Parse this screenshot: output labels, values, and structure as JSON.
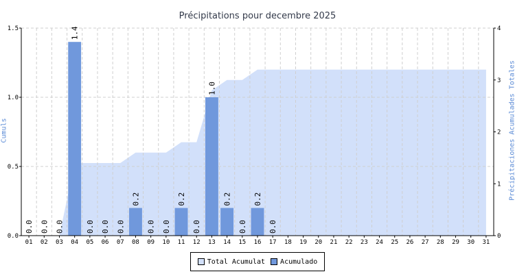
{
  "chart_data": {
    "type": "bar",
    "title": "Précipitations pour decembre 2025",
    "xlabel": "",
    "ylabel": "Cumuls",
    "y2label": "Précipitaciones Acumulades Totales",
    "categories": [
      "01",
      "02",
      "03",
      "04",
      "05",
      "06",
      "07",
      "08",
      "09",
      "10",
      "11",
      "12",
      "13",
      "14",
      "15",
      "16",
      "17",
      "18",
      "19",
      "20",
      "21",
      "22",
      "23",
      "24",
      "25",
      "26",
      "27",
      "28",
      "29",
      "30",
      "31"
    ],
    "ylim": [
      0,
      1.5
    ],
    "y2lim": [
      0,
      4
    ],
    "yticks": [
      "0.0",
      "0.5",
      "1.0",
      "1.5"
    ],
    "y2ticks": [
      "0",
      "1",
      "2",
      "3",
      "4"
    ],
    "grid": true,
    "legend": "bottom-center",
    "series": [
      {
        "name": "Acumulado",
        "type": "bar",
        "axis": "left",
        "color": "#7098dc",
        "values": [
          0.0,
          0.0,
          0.0,
          1.4,
          0.0,
          0.0,
          0.0,
          0.2,
          0.0,
          0.0,
          0.2,
          0.0,
          1.0,
          0.2,
          0.0,
          0.2,
          0.0,
          null,
          null,
          null,
          null,
          null,
          null,
          null,
          null,
          null,
          null,
          null,
          null,
          null,
          null
        ],
        "labels": [
          "0.0",
          "0.0",
          "0.0",
          "1.4",
          "0.0",
          "0.0",
          "0.0",
          "0.2",
          "0.0",
          "0.0",
          "0.2",
          "0.0",
          "1.0",
          "0.2",
          "0.0",
          "0.2",
          "0.0",
          "",
          "",
          "",
          "",
          "",
          "",
          "",
          "",
          "",
          "",
          "",
          "",
          "",
          ""
        ]
      },
      {
        "name": "Total Acumulat",
        "type": "area",
        "axis": "right",
        "color": "#d2e0fa",
        "values": [
          0.0,
          0.0,
          0.0,
          1.4,
          1.4,
          1.4,
          1.4,
          1.6,
          1.6,
          1.6,
          1.8,
          1.8,
          2.8,
          3.0,
          3.0,
          3.2,
          3.2,
          3.2,
          3.2,
          3.2,
          3.2,
          3.2,
          3.2,
          3.2,
          3.2,
          3.2,
          3.2,
          3.2,
          3.2,
          3.2,
          3.2
        ]
      }
    ]
  }
}
